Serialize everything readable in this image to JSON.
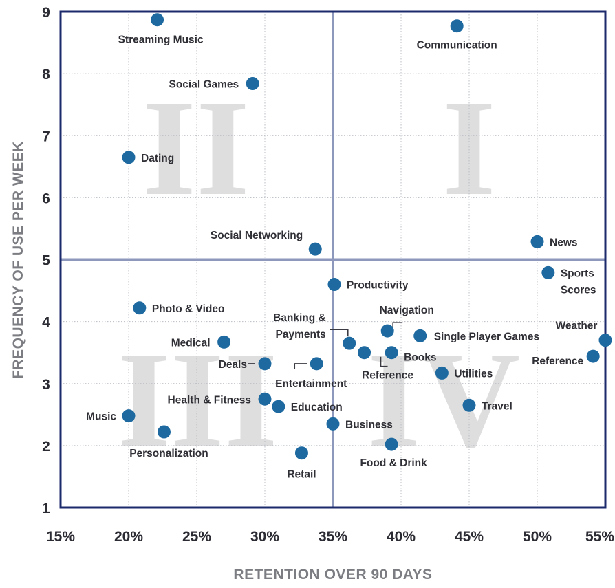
{
  "chart_data": {
    "type": "scatter",
    "title": "",
    "xlabel": "RETENTION OVER 90 DAYS",
    "ylabel": "FREQUENCY OF USE PER WEEK",
    "xlim": [
      15,
      55
    ],
    "ylim": [
      1,
      9
    ],
    "x_ticks": [
      15,
      20,
      25,
      30,
      35,
      40,
      45,
      50,
      55
    ],
    "x_tick_labels": [
      "15%",
      "20%",
      "25%",
      "30%",
      "35%",
      "40%",
      "45%",
      "50%",
      "55%"
    ],
    "y_ticks": [
      1,
      2,
      3,
      4,
      5,
      6,
      7,
      8,
      9
    ],
    "y_tick_labels": [
      "1",
      "2",
      "3",
      "4",
      "5",
      "6",
      "7",
      "8",
      "9"
    ],
    "grid": true,
    "divider_lines": {
      "x": 35,
      "y": 5
    },
    "quadrant_labels": [
      "I",
      "II",
      "III",
      "IV"
    ],
    "marker_color": "#1e6aa0",
    "grid_color": "#b8bcc4",
    "frame_color": "#1b2a6b",
    "divider_color": "#8e98bd",
    "points": [
      {
        "label": "Streaming Music",
        "x": 22.1,
        "y": 8.87
      },
      {
        "label": "Communication",
        "x": 44.1,
        "y": 8.77
      },
      {
        "label": "Social Games",
        "x": 29.1,
        "y": 7.84
      },
      {
        "label": "Dating",
        "x": 20.0,
        "y": 6.65
      },
      {
        "label": "Social Networking",
        "x": 33.7,
        "y": 5.17
      },
      {
        "label": "News",
        "x": 50.0,
        "y": 5.29
      },
      {
        "label": "Sports Scores",
        "x": 50.8,
        "y": 4.79
      },
      {
        "label": "Productivity",
        "x": 35.1,
        "y": 4.6
      },
      {
        "label": "Photo & Video",
        "x": 20.8,
        "y": 4.22
      },
      {
        "label": "Navigation",
        "x": 39.0,
        "y": 3.85
      },
      {
        "label": "Single Player Games",
        "x": 41.4,
        "y": 3.77
      },
      {
        "label": "Weather",
        "x": 55.0,
        "y": 3.7
      },
      {
        "label": "Medical",
        "x": 27.0,
        "y": 3.67
      },
      {
        "label": "Banking & Payments",
        "x": 36.2,
        "y": 3.65
      },
      {
        "label": "Books",
        "x": 39.3,
        "y": 3.5
      },
      {
        "label": "Reference",
        "x": 37.3,
        "y": 3.5
      },
      {
        "label": "Reference",
        "x": 54.1,
        "y": 3.44
      },
      {
        "label": "Deals",
        "x": 30.0,
        "y": 3.32
      },
      {
        "label": "Entertainment",
        "x": 33.8,
        "y": 3.32
      },
      {
        "label": "Utilities",
        "x": 43.0,
        "y": 3.17
      },
      {
        "label": "Health & Fitness",
        "x": 30.0,
        "y": 2.75
      },
      {
        "label": "Education",
        "x": 31.0,
        "y": 2.63
      },
      {
        "label": "Travel",
        "x": 45.0,
        "y": 2.65
      },
      {
        "label": "Music",
        "x": 20.0,
        "y": 2.48
      },
      {
        "label": "Business",
        "x": 35.0,
        "y": 2.35
      },
      {
        "label": "Personalization",
        "x": 22.6,
        "y": 2.22
      },
      {
        "label": "Food & Drink",
        "x": 39.3,
        "y": 2.02
      },
      {
        "label": "Retail",
        "x": 32.7,
        "y": 1.88
      }
    ]
  }
}
